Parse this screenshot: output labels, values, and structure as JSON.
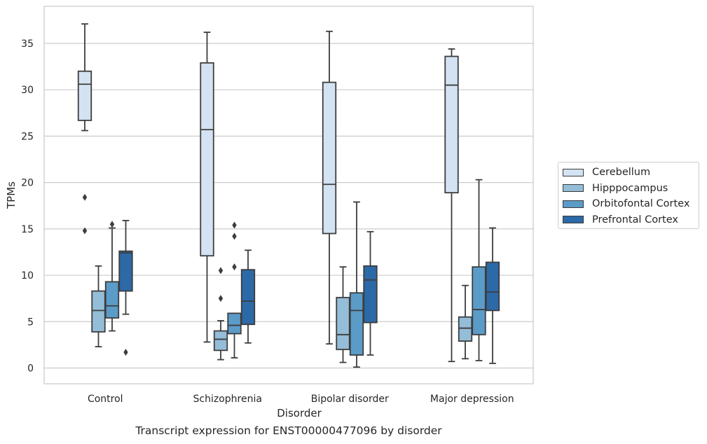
{
  "chart_data": {
    "type": "box",
    "ylabel": "TPMs",
    "xlabel": "Disorder",
    "caption": "Transcript expression for ENST00000477096 by disorder",
    "ylim": [
      -1.7,
      39
    ],
    "yticks": [
      0,
      5,
      10,
      15,
      20,
      25,
      30,
      35
    ],
    "grid": "horizontal",
    "legend_placement": "right",
    "categories": [
      "Control",
      "Schizophrenia",
      "Bipolar disorder",
      "Major depression"
    ],
    "series": [
      {
        "name": "Cerebellum",
        "color": "#d4e3f3",
        "boxes": [
          {
            "whislo": 25.6,
            "q1": 26.7,
            "med": 30.6,
            "q3": 32.0,
            "whishi": 37.1,
            "fliers": [
              18.4,
              14.8
            ]
          },
          {
            "whislo": 2.8,
            "q1": 12.1,
            "med": 25.7,
            "q3": 32.9,
            "whishi": 36.2,
            "fliers": []
          },
          {
            "whislo": 2.6,
            "q1": 14.5,
            "med": 19.8,
            "q3": 30.8,
            "whishi": 36.3,
            "fliers": []
          },
          {
            "whislo": 0.7,
            "q1": 18.9,
            "med": 30.5,
            "q3": 33.6,
            "whishi": 34.4,
            "fliers": []
          }
        ]
      },
      {
        "name": "Hipppocampus",
        "color": "#94bdd8",
        "boxes": [
          {
            "whislo": 2.3,
            "q1": 3.9,
            "med": 6.2,
            "q3": 8.3,
            "whishi": 11.0,
            "fliers": []
          },
          {
            "whislo": 0.9,
            "q1": 1.9,
            "med": 3.1,
            "q3": 4.0,
            "whishi": 5.1,
            "fliers": [
              10.5,
              7.5
            ]
          },
          {
            "whislo": 0.6,
            "q1": 2.0,
            "med": 3.6,
            "q3": 7.6,
            "whishi": 10.9,
            "fliers": []
          },
          {
            "whislo": 1.0,
            "q1": 2.9,
            "med": 4.3,
            "q3": 5.5,
            "whishi": 8.9,
            "fliers": []
          }
        ]
      },
      {
        "name": "Orbitofontal Cortex",
        "color": "#5b9bc8",
        "boxes": [
          {
            "whislo": 4.0,
            "q1": 5.4,
            "med": 6.7,
            "q3": 9.3,
            "whishi": 15.1,
            "fliers": [
              15.5
            ]
          },
          {
            "whislo": 1.1,
            "q1": 3.7,
            "med": 4.6,
            "q3": 5.9,
            "whishi": 5.9,
            "fliers": [
              15.4,
              14.2,
              10.9
            ]
          },
          {
            "whislo": 0.1,
            "q1": 1.4,
            "med": 6.2,
            "q3": 8.1,
            "whishi": 17.9,
            "fliers": []
          },
          {
            "whislo": 0.8,
            "q1": 3.6,
            "med": 6.3,
            "q3": 10.9,
            "whishi": 20.3,
            "fliers": []
          }
        ]
      },
      {
        "name": "Prefrontal Cortex",
        "color": "#2c69a7",
        "boxes": [
          {
            "whislo": 5.8,
            "q1": 8.3,
            "med": 12.4,
            "q3": 12.6,
            "whishi": 15.9,
            "fliers": [
              1.7
            ]
          },
          {
            "whislo": 2.7,
            "q1": 4.7,
            "med": 7.2,
            "q3": 10.6,
            "whishi": 12.7,
            "fliers": []
          },
          {
            "whislo": 1.4,
            "q1": 4.9,
            "med": 9.5,
            "q3": 11.0,
            "whishi": 14.7,
            "fliers": []
          },
          {
            "whislo": 0.5,
            "q1": 6.2,
            "med": 8.2,
            "q3": 11.4,
            "whishi": 15.1,
            "fliers": []
          }
        ]
      }
    ]
  }
}
